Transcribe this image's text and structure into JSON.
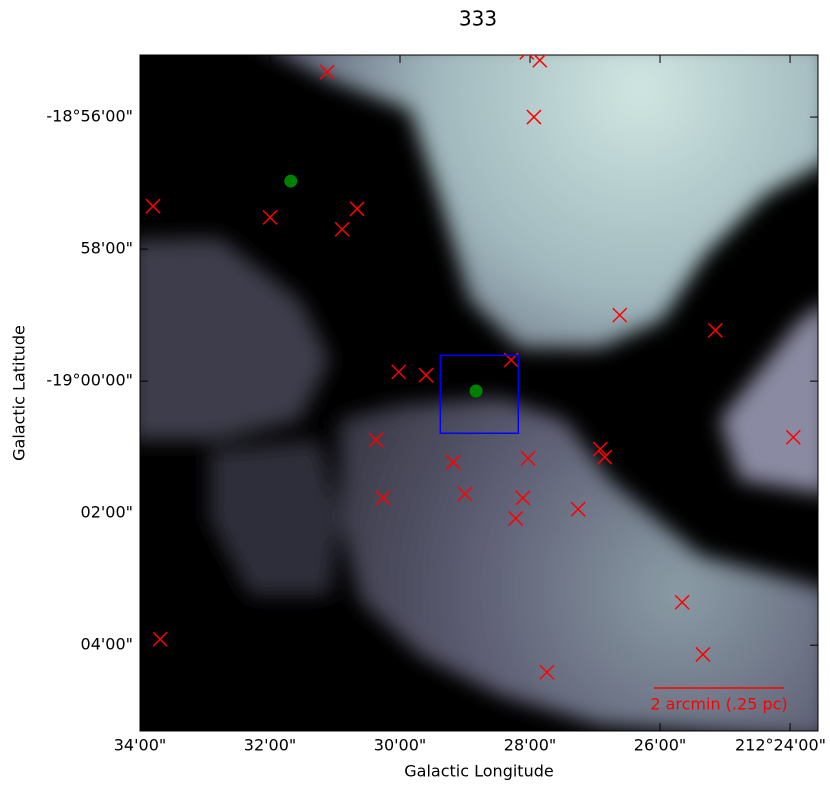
{
  "chart_data": {
    "type": "scatter",
    "title": "333",
    "x_label": "Galactic Longitude",
    "y_label": "Galactic Latitude",
    "xlim": [
      34,
      23.57
    ],
    "ylim": [
      -65.3,
      -55.06
    ],
    "xticks": [
      {
        "value": 34,
        "label": "34'00\""
      },
      {
        "value": 32,
        "label": "32'00\""
      },
      {
        "value": 30,
        "label": "30'00\""
      },
      {
        "value": 28,
        "label": "28'00\""
      },
      {
        "value": 26,
        "label": "26'00\""
      },
      {
        "value": 24,
        "label": "212°24'00\""
      }
    ],
    "yticks": [
      {
        "value": -56,
        "label": "-18°56'00\""
      },
      {
        "value": -58,
        "label": "58'00\""
      },
      {
        "value": -60,
        "label": "-19°00'00\""
      },
      {
        "value": -62,
        "label": "02'00\""
      },
      {
        "value": -64,
        "label": "04'00\""
      }
    ],
    "series": [
      {
        "marker": "x",
        "color": "#ff0000",
        "x": [
          31.12,
          28.05,
          27.85,
          27.94,
          33.8,
          32.0,
          30.66,
          30.89,
          26.62,
          25.15,
          30.02,
          29.6,
          28.29,
          30.37,
          26.92,
          26.85,
          23.95,
          29.18,
          28.03,
          29.0,
          28.11,
          30.26,
          28.22,
          27.26,
          25.66,
          25.34,
          33.69,
          27.74
        ],
        "y": [
          -55.32,
          -55.02,
          -55.14,
          -56.0,
          -57.35,
          -57.52,
          -57.39,
          -57.7,
          -59.0,
          -59.23,
          -59.86,
          -59.91,
          -59.68,
          -60.89,
          -61.03,
          -61.15,
          -60.85,
          -61.23,
          -61.17,
          -61.71,
          -61.77,
          -61.77,
          -62.08,
          -61.94,
          -63.35,
          -64.14,
          -63.91,
          -64.41
        ]
      },
      {
        "marker": "o",
        "color": "#008000",
        "x": [
          31.68,
          28.83
        ],
        "y": [
          -56.97,
          -60.15
        ]
      }
    ],
    "region": {
      "color": "#0000ff",
      "x": [
        29.38,
        28.18
      ],
      "y": [
        -59.61,
        -60.79
      ]
    },
    "scalebar": {
      "label": "2 arcmin (.25 pc)",
      "length": 2,
      "color": "#ff0000"
    }
  }
}
